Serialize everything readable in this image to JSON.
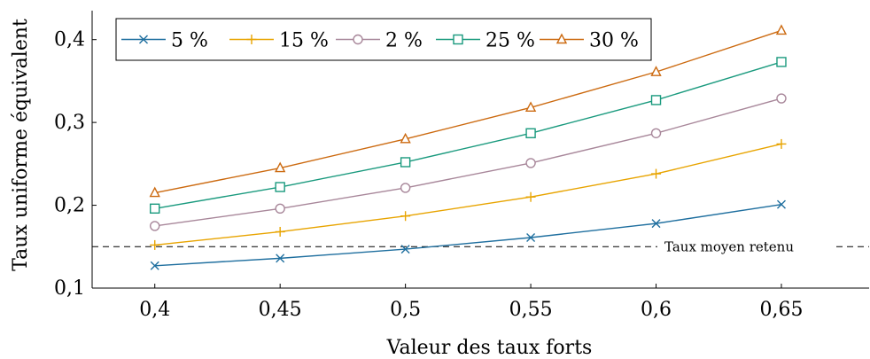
{
  "chart_data": {
    "type": "line",
    "title": "",
    "xlabel": "Valeur des taux forts",
    "ylabel": "Taux uniforme équivalent",
    "x": [
      0.4,
      0.45,
      0.5,
      0.55,
      0.6,
      0.65
    ],
    "x_tick_labels": [
      "0,4",
      "0,45",
      "0,5",
      "0,55",
      "0,6",
      "0,65"
    ],
    "y_ticks": [
      0.1,
      0.2,
      0.3,
      0.4
    ],
    "y_tick_labels": [
      "0,1",
      "0,2",
      "0,3",
      "0,4"
    ],
    "xlim": [
      0.375,
      0.685
    ],
    "ylim": [
      0.1,
      0.435
    ],
    "grid": false,
    "legend_position": "top-left",
    "series": [
      {
        "name": "5 %",
        "color": "#1f6f9f",
        "marker": "x",
        "values": [
          0.127,
          0.136,
          0.147,
          0.161,
          0.178,
          0.201
        ]
      },
      {
        "name": "15 %",
        "color": "#e8a400",
        "marker": "plus",
        "values": [
          0.152,
          0.168,
          0.187,
          0.21,
          0.238,
          0.274
        ]
      },
      {
        "name": "2 %",
        "color": "#a8879a",
        "marker": "circle",
        "values": [
          0.175,
          0.196,
          0.221,
          0.251,
          0.287,
          0.329
        ]
      },
      {
        "name": "25 %",
        "color": "#1a9a7e",
        "marker": "square",
        "values": [
          0.196,
          0.222,
          0.252,
          0.287,
          0.327,
          0.373
        ]
      },
      {
        "name": "30 %",
        "color": "#cc6a10",
        "marker": "triangle",
        "values": [
          0.215,
          0.245,
          0.28,
          0.318,
          0.361,
          0.411
        ]
      }
    ],
    "reference_line": {
      "y": 0.15,
      "label": "Taux moyen retenu",
      "style": "dashed",
      "color": "#000000"
    }
  }
}
